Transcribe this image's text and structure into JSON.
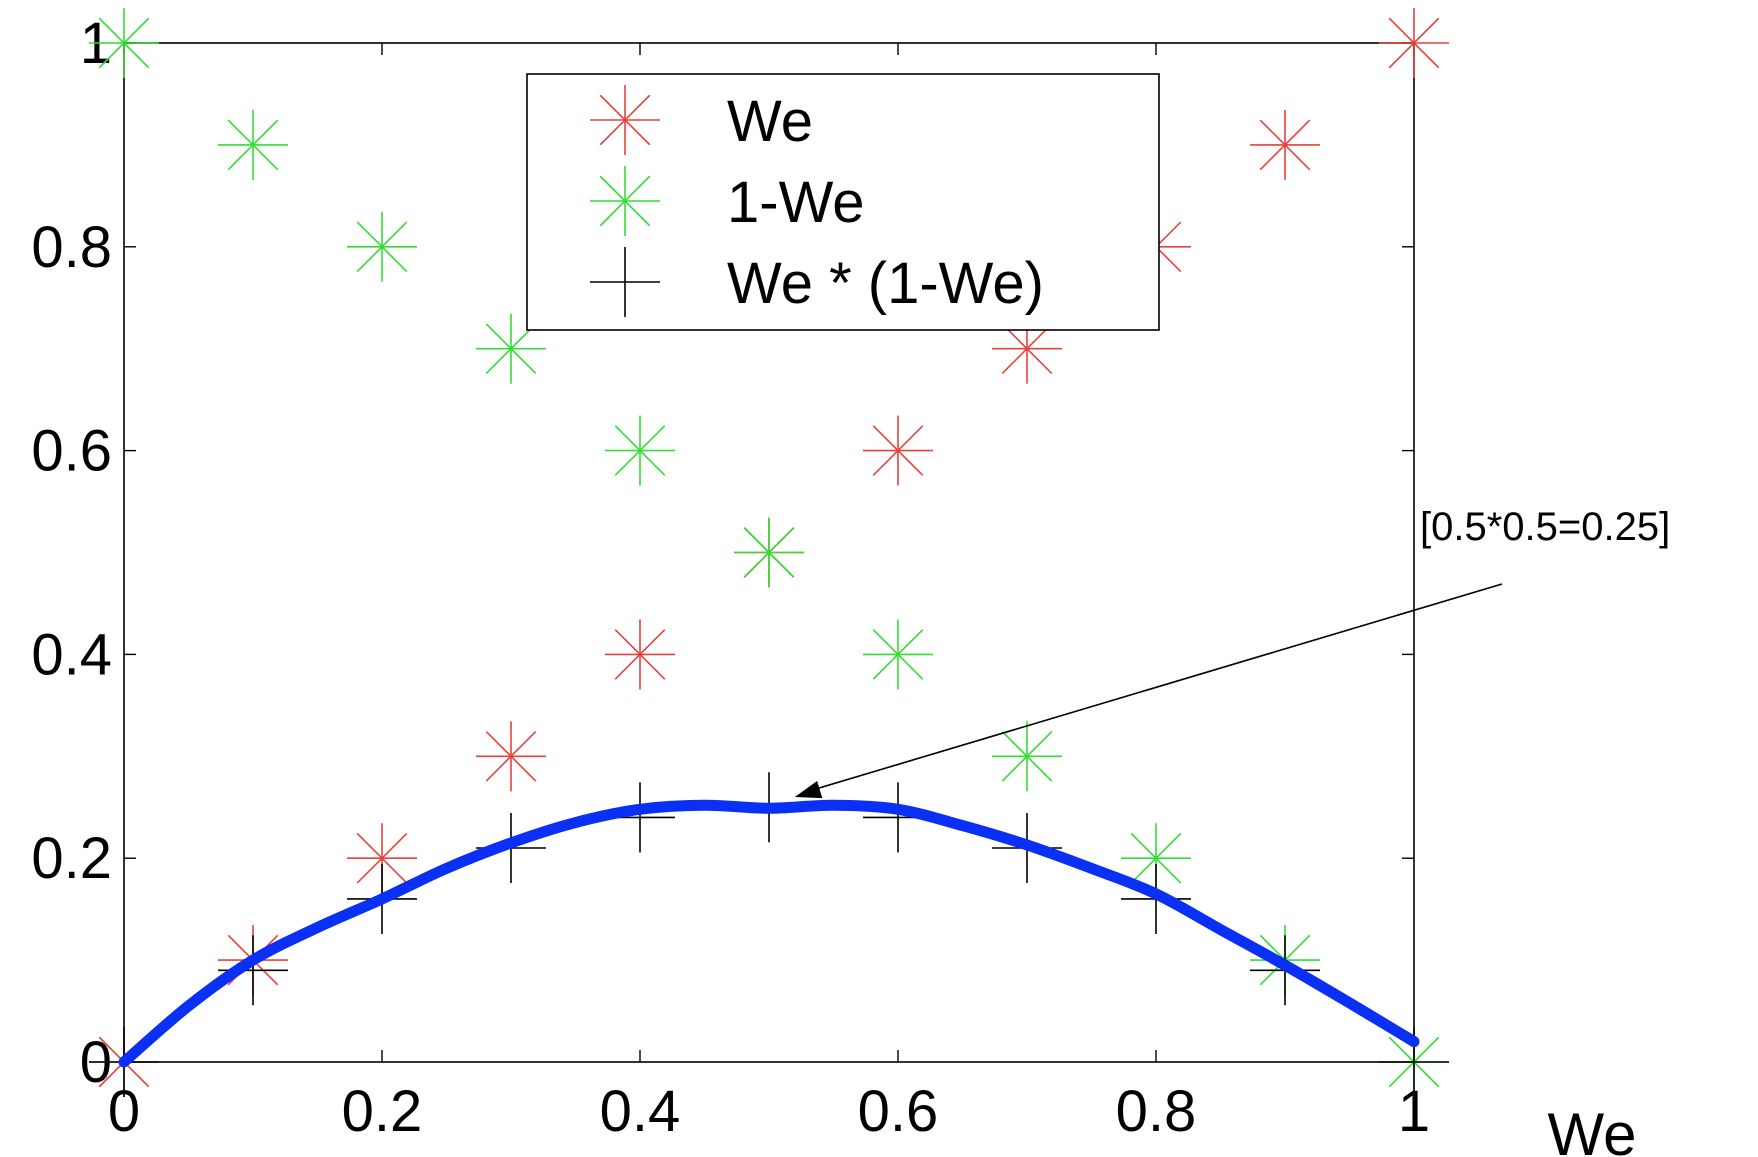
{
  "chart_data": {
    "type": "scatter",
    "xlabel": "We",
    "ylabel": "",
    "xlim": [
      0,
      1
    ],
    "ylim": [
      0,
      1
    ],
    "xticks": [
      "0",
      "0.2",
      "0.4",
      "0.6",
      "0.8",
      "1"
    ],
    "yticks": [
      "0",
      "0.2",
      "0.4",
      "0.6",
      "0.8",
      "1"
    ],
    "grid": false,
    "legend_position": "top-center",
    "series": [
      {
        "name": "We",
        "marker": "asterisk",
        "color": "#e8413c",
        "x": [
          0,
          0.1,
          0.2,
          0.3,
          0.4,
          0.5,
          0.6,
          0.7,
          0.8,
          0.9,
          1
        ],
        "y": [
          0,
          0.1,
          0.2,
          0.3,
          0.4,
          0.5,
          0.6,
          0.7,
          0.8,
          0.9,
          1
        ]
      },
      {
        "name": "1-We",
        "marker": "asterisk",
        "color": "#33dd33",
        "x": [
          0,
          0.1,
          0.2,
          0.3,
          0.4,
          0.5,
          0.6,
          0.7,
          0.8,
          0.9,
          1
        ],
        "y": [
          1,
          0.9,
          0.8,
          0.7,
          0.6,
          0.5,
          0.4,
          0.3,
          0.2,
          0.1,
          0
        ]
      },
      {
        "name": "We * (1-We)",
        "marker": "plus",
        "color": "#000000",
        "x": [
          0,
          0.1,
          0.2,
          0.3,
          0.4,
          0.5,
          0.6,
          0.7,
          0.8,
          0.9,
          1
        ],
        "y": [
          0,
          0.09,
          0.16,
          0.21,
          0.24,
          0.25,
          0.24,
          0.21,
          0.16,
          0.09,
          0
        ]
      }
    ],
    "fit_curve": {
      "color": "#0a2ff5",
      "x": [
        0,
        0.05,
        0.1,
        0.15,
        0.2,
        0.25,
        0.3,
        0.35,
        0.4,
        0.45,
        0.5,
        0.55,
        0.6,
        0.65,
        0.7,
        0.75,
        0.8,
        0.85,
        0.9,
        0.95,
        1
      ],
      "y": [
        0,
        0.055,
        0.1,
        0.132,
        0.16,
        0.19,
        0.215,
        0.235,
        0.248,
        0.252,
        0.249,
        0.252,
        0.248,
        0.232,
        0.213,
        0.19,
        0.165,
        0.13,
        0.095,
        0.058,
        0.02
      ]
    },
    "annotation": {
      "text": "[0.5*0.5=0.25]",
      "target": [
        0.52,
        0.26
      ]
    }
  }
}
